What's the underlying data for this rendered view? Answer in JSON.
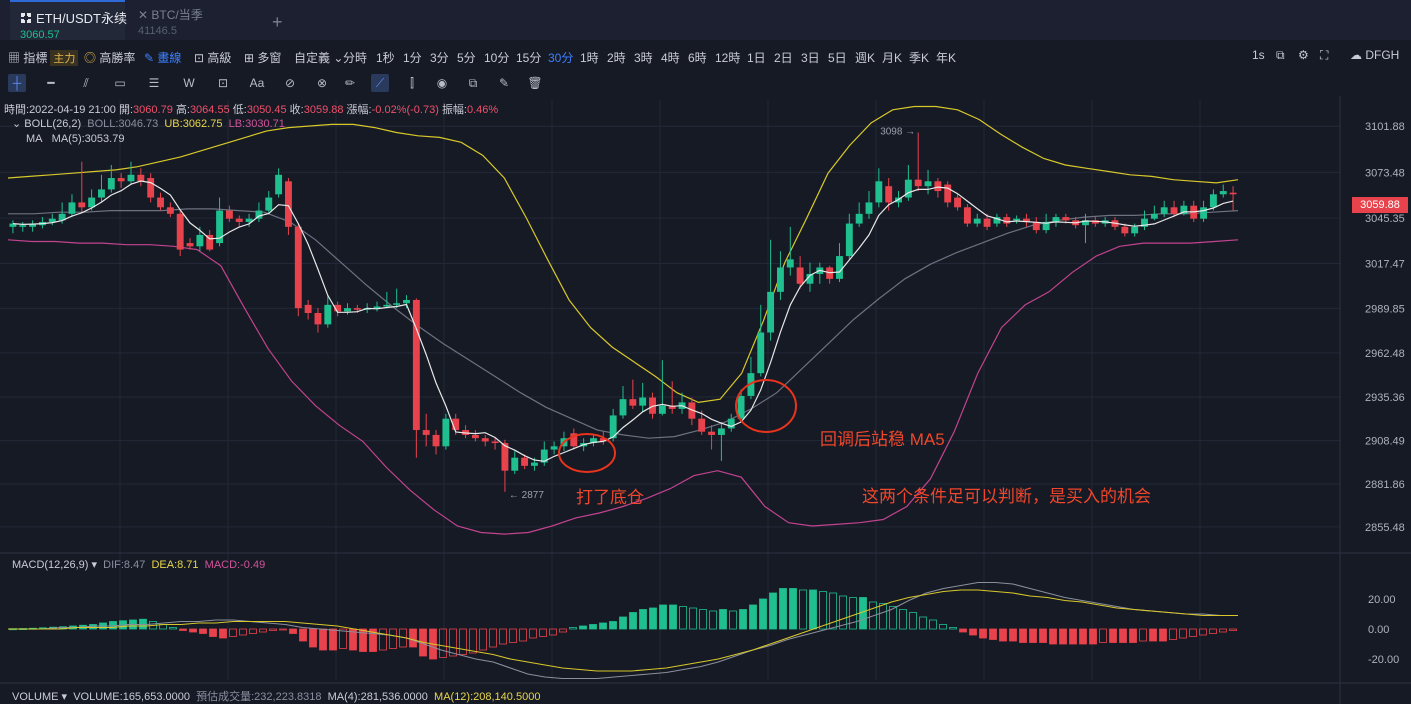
{
  "tabs": [
    {
      "symbol": "ETH/USDT永续",
      "price": "3060.57"
    },
    {
      "symbol": "BTC/当季",
      "price": "41146.5"
    }
  ],
  "toolbar": {
    "indicator": "指標",
    "main_badge": "主力",
    "high_win": "高勝率",
    "draw": "畫線",
    "advanced": "高級",
    "multi": "多窗",
    "custom": "自定義",
    "timeshare": "分時",
    "intervals": [
      "1秒",
      "1分",
      "3分",
      "5分",
      "10分",
      "15分",
      "30分",
      "1時",
      "2時",
      "3時",
      "4時",
      "6時",
      "12時",
      "1日",
      "2日",
      "3日",
      "5日",
      "週K",
      "月K",
      "季K",
      "年K"
    ],
    "active_interval": "30分",
    "right_interval": "1s",
    "exchange": "DFGH"
  },
  "info": {
    "time_label": "時間:",
    "time": "2022-04-19 21:00",
    "open_label": "開:",
    "open": "3060.79",
    "high_label": "高:",
    "high": "3064.55",
    "low_label": "低:",
    "low": "3050.45",
    "close_label": "收:",
    "close": "3059.88",
    "chg_label": "漲幅:",
    "chg": "-0.02%(-0.73)",
    "amp_label": "振幅:",
    "amp": "0.46%"
  },
  "boll": {
    "label": "BOLL(26,2)",
    "mid": "BOLL:3046.73",
    "ub": "UB:3062.75",
    "lb": "LB:3030.71"
  },
  "ma": {
    "label": "MA",
    "ma5": "MA(5):3053.79"
  },
  "macd": {
    "label": "MACD(12,26,9)",
    "dif": "DIF:8.47",
    "dea": "DEA:8.71",
    "macd": "MACD:-0.49"
  },
  "volume": {
    "label": "VOLUME",
    "volume": "VOLUME:165,653.0000",
    "est": "預估成交量:232,223.8318",
    "ma4": "MA(4):281,536.0000",
    "ma12": "MA(12):208,140.5000"
  },
  "current_price_tag": "3059.88",
  "annotations": {
    "bottom": "打了底仓",
    "ma5": "回调后站稳 MA5",
    "conclusion": "这两个条件足可以判断，是买入的机会"
  },
  "colors": {
    "up": "#1fbf8f",
    "down": "#e8434c",
    "boll_upper": "#d8c82a",
    "boll_lower": "#c2438f",
    "boll_mid": "#6d7180",
    "ma5": "#e8e8e8",
    "annotation": "#f0462b"
  },
  "chart_data": {
    "type": "candlestick",
    "price_axis": {
      "ticks": [
        3101.88,
        3073.48,
        3045.35,
        3017.47,
        2989.85,
        2962.48,
        2935.36,
        2908.49,
        2881.86,
        2855.48
      ],
      "ylim": [
        2840,
        3118
      ]
    },
    "high_marker": "3098",
    "low_marker": "2877",
    "candles": [
      [
        3040,
        3042,
        3036,
        3044
      ],
      [
        3040,
        3041,
        3037,
        3043
      ],
      [
        3040,
        3042,
        3037,
        3044
      ],
      [
        3041,
        3043,
        3039,
        3046
      ],
      [
        3043,
        3045,
        3041,
        3048
      ],
      [
        3044,
        3048,
        3042,
        3055
      ],
      [
        3048,
        3055,
        3046,
        3060
      ],
      [
        3055,
        3052,
        3049,
        3080
      ],
      [
        3052,
        3058,
        3050,
        3063
      ],
      [
        3058,
        3063,
        3055,
        3072
      ],
      [
        3063,
        3070,
        3061,
        3078
      ],
      [
        3070,
        3068,
        3064,
        3073
      ],
      [
        3068,
        3072,
        3066,
        3080
      ],
      [
        3072,
        3068,
        3065,
        3076
      ],
      [
        3070,
        3058,
        3055,
        3073
      ],
      [
        3058,
        3052,
        3050,
        3061
      ],
      [
        3052,
        3048,
        3046,
        3055
      ],
      [
        3048,
        3026,
        3022,
        3050
      ],
      [
        3030,
        3028,
        3026,
        3033
      ],
      [
        3028,
        3035,
        3025,
        3040
      ],
      [
        3035,
        3026,
        3025,
        3038
      ],
      [
        3030,
        3050,
        3028,
        3058
      ],
      [
        3050,
        3045,
        3043,
        3053
      ],
      [
        3045,
        3043,
        3040,
        3047
      ],
      [
        3043,
        3045,
        3040,
        3048
      ],
      [
        3045,
        3050,
        3043,
        3055
      ],
      [
        3050,
        3058,
        3048,
        3062
      ],
      [
        3060,
        3072,
        3058,
        3076
      ],
      [
        3068,
        3040,
        3035,
        3070
      ],
      [
        3040,
        2990,
        2985,
        3042
      ],
      [
        2992,
        2987,
        2983,
        2995
      ],
      [
        2987,
        2980,
        2975,
        2990
      ],
      [
        2980,
        2992,
        2978,
        2998
      ],
      [
        2992,
        2988,
        2985,
        2994
      ],
      [
        2988,
        2990,
        2986,
        2993
      ],
      [
        2990,
        2989,
        2987,
        2992
      ],
      [
        2989,
        2990,
        2987,
        2993
      ],
      [
        2990,
        2991,
        2988,
        2994
      ],
      [
        2991,
        2992,
        2990,
        3000
      ],
      [
        2992,
        2993,
        2990,
        3002
      ],
      [
        2993,
        2995,
        2990,
        2998
      ],
      [
        2995,
        2915,
        2898,
        2996
      ],
      [
        2915,
        2912,
        2905,
        2925
      ],
      [
        2912,
        2905,
        2900,
        2915
      ],
      [
        2905,
        2922,
        2903,
        2925
      ],
      [
        2922,
        2915,
        2912,
        2925
      ],
      [
        2915,
        2912,
        2910,
        2918
      ],
      [
        2912,
        2910,
        2908,
        2915
      ],
      [
        2910,
        2908,
        2905,
        2912
      ],
      [
        2908,
        2907,
        2903,
        2910
      ],
      [
        2907,
        2890,
        2877,
        2909
      ],
      [
        2890,
        2898,
        2888,
        2902
      ],
      [
        2898,
        2893,
        2891,
        2900
      ],
      [
        2893,
        2895,
        2890,
        2898
      ],
      [
        2895,
        2903,
        2893,
        2908
      ],
      [
        2903,
        2905,
        2900,
        2908
      ],
      [
        2905,
        2910,
        2902,
        2914
      ],
      [
        2913,
        2905,
        2903,
        2916
      ],
      [
        2905,
        2907,
        2902,
        2910
      ],
      [
        2907,
        2910,
        2905,
        2912
      ],
      [
        2910,
        2908,
        2906,
        2914
      ],
      [
        2910,
        2924,
        2908,
        2928
      ],
      [
        2924,
        2934,
        2922,
        2942
      ],
      [
        2934,
        2930,
        2928,
        2946
      ],
      [
        2930,
        2935,
        2926,
        2944
      ],
      [
        2935,
        2925,
        2922,
        2938
      ],
      [
        2925,
        2930,
        2924,
        2958
      ],
      [
        2930,
        2928,
        2925,
        2945
      ],
      [
        2928,
        2932,
        2925,
        2938
      ],
      [
        2932,
        2922,
        2918,
        2935
      ],
      [
        2922,
        2914,
        2912,
        2927
      ],
      [
        2914,
        2912,
        2903,
        2918
      ],
      [
        2912,
        2916,
        2896,
        2920
      ],
      [
        2916,
        2922,
        2914,
        2925
      ],
      [
        2922,
        2936,
        2920,
        2940
      ],
      [
        2936,
        2950,
        2934,
        2960
      ],
      [
        2950,
        2975,
        2948,
        2992
      ],
      [
        2975,
        3000,
        2970,
        3032
      ],
      [
        3000,
        3015,
        2995,
        3025
      ],
      [
        3015,
        3020,
        3010,
        3040
      ],
      [
        3015,
        3005,
        3002,
        3022
      ],
      [
        3005,
        3011,
        3000,
        3018
      ],
      [
        3011,
        3015,
        3005,
        3018
      ],
      [
        3015,
        3008,
        3005,
        3016
      ],
      [
        3008,
        3022,
        3006,
        3030
      ],
      [
        3022,
        3042,
        3020,
        3048
      ],
      [
        3042,
        3048,
        3040,
        3055
      ],
      [
        3048,
        3055,
        3045,
        3062
      ],
      [
        3055,
        3068,
        3052,
        3076
      ],
      [
        3065,
        3055,
        3050,
        3070
      ],
      [
        3055,
        3058,
        3052,
        3062
      ],
      [
        3058,
        3069,
        3056,
        3078
      ],
      [
        3069,
        3065,
        3062,
        3098
      ],
      [
        3065,
        3068,
        3060,
        3075
      ],
      [
        3068,
        3062,
        3058,
        3070
      ],
      [
        3066,
        3055,
        3052,
        3068
      ],
      [
        3058,
        3052,
        3050,
        3060
      ],
      [
        3052,
        3042,
        3040,
        3054
      ],
      [
        3042,
        3045,
        3040,
        3048
      ],
      [
        3045,
        3040,
        3038,
        3048
      ],
      [
        3042,
        3046,
        3040,
        3048
      ],
      [
        3046,
        3042,
        3040,
        3048
      ],
      [
        3044,
        3045,
        3042,
        3047
      ],
      [
        3045,
        3043,
        3040,
        3048
      ],
      [
        3043,
        3038,
        3036,
        3046
      ],
      [
        3038,
        3043,
        3036,
        3048
      ],
      [
        3043,
        3046,
        3040,
        3048
      ],
      [
        3046,
        3044,
        3042,
        3048
      ],
      [
        3044,
        3041,
        3039,
        3046
      ],
      [
        3041,
        3044,
        3030,
        3048
      ],
      [
        3044,
        3042,
        3040,
        3046
      ],
      [
        3042,
        3044,
        3040,
        3046
      ],
      [
        3044,
        3040,
        3038,
        3046
      ],
      [
        3040,
        3036,
        3034,
        3042
      ],
      [
        3036,
        3040,
        3034,
        3042
      ],
      [
        3040,
        3045,
        3038,
        3050
      ],
      [
        3045,
        3048,
        3044,
        3053
      ],
      [
        3048,
        3052,
        3046,
        3056
      ],
      [
        3052,
        3048,
        3046,
        3056
      ],
      [
        3048,
        3053,
        3047,
        3056
      ],
      [
        3053,
        3045,
        3043,
        3056
      ],
      [
        3045,
        3052,
        3043,
        3056
      ],
      [
        3052,
        3060,
        3050,
        3063
      ],
      [
        3060,
        3062,
        3058,
        3066
      ],
      [
        3061,
        3060,
        3050,
        3065
      ]
    ],
    "boll_upper": [
      3070,
      3071,
      3072,
      3073,
      3074,
      3075,
      3077,
      3080,
      3083,
      3087,
      3091,
      3095,
      3099,
      3101,
      3102,
      3103,
      3103,
      3101,
      3098,
      3096,
      3095,
      3092,
      3084,
      3070,
      3046,
      3020,
      2995,
      2978,
      2966,
      2957,
      2948,
      2938,
      2932,
      2934,
      2950,
      2982,
      3018,
      3045,
      3073,
      3090,
      3104,
      3112,
      3114,
      3114,
      3112,
      3106,
      3097,
      3089,
      3082,
      3078,
      3076,
      3074,
      3072,
      3071,
      3069,
      3068,
      3067,
      3069
    ],
    "boll_lower": [
      3032,
      3031,
      3031,
      3030,
      3030,
      3029,
      3029,
      3028,
      3026,
      3016,
      2990,
      2965,
      2945,
      2930,
      2918,
      2908,
      2892,
      2878,
      2866,
      2856,
      2852,
      2851,
      2852,
      2856,
      2861,
      2864,
      2868,
      2873,
      2879,
      2887,
      2890,
      2886,
      2868,
      2858,
      2856,
      2857,
      2858,
      2860,
      2868,
      2885,
      2914,
      2950,
      2978,
      2992,
      3000,
      3012,
      3022,
      3028,
      3030,
      3030,
      3030,
      3031,
      3032
    ],
    "boll_mid": [
      3048,
      3048,
      3049,
      3049,
      3050,
      3050,
      3050,
      3051,
      3051,
      3050,
      3049,
      3043,
      3032,
      3018,
      3004,
      2991,
      2979,
      2968,
      2958,
      2948,
      2938,
      2929,
      2922,
      2915,
      2912,
      2910,
      2911,
      2915,
      2920,
      2928,
      2938,
      2953,
      2968,
      2983,
      2996,
      3008,
      3017,
      3024,
      3030,
      3036,
      3041,
      3044,
      3046,
      3047,
      3047,
      3048,
      3048,
      3049,
      3050
    ],
    "macd_axis": {
      "ticks": [
        20.0,
        0.0,
        -20.0
      ],
      "ylim": [
        -34,
        36
      ]
    },
    "macd_hist": [
      0.2,
      0.3,
      0.5,
      0.8,
      1.2,
      1.5,
      2,
      2.5,
      3,
      4,
      5,
      5.5,
      6,
      6.5,
      5,
      3,
      1,
      -1,
      -2,
      -3,
      -5,
      -6,
      -5,
      -4,
      -3,
      -2,
      -1,
      -0.5,
      -3,
      -8,
      -12,
      -14,
      -14,
      -13,
      -14,
      -15,
      -15,
      -14,
      -13,
      -12,
      -12,
      -18,
      -20,
      -19,
      -18,
      -17,
      -16,
      -14,
      -12,
      -10,
      -9,
      -8,
      -6,
      -5,
      -4,
      -2,
      1,
      2,
      3,
      4,
      5,
      8,
      11,
      13,
      14,
      16,
      16,
      15,
      14,
      13,
      12,
      13,
      12,
      13,
      16,
      20,
      24,
      27,
      27,
      26,
      26,
      25,
      24,
      22,
      21,
      21,
      18,
      17,
      15,
      13,
      11,
      8,
      6,
      3,
      1,
      -2,
      -4,
      -6,
      -7,
      -8,
      -8,
      -9,
      -9,
      -9,
      -10,
      -10,
      -10,
      -10,
      -10,
      -9,
      -9,
      -9,
      -9,
      -8,
      -8,
      -8,
      -7,
      -6,
      -5,
      -4,
      -3,
      -2,
      -1
    ],
    "macd_dif": [
      0,
      0,
      0,
      1,
      1,
      2,
      2,
      3,
      3,
      4,
      5,
      5,
      6,
      6,
      5,
      4,
      3,
      1,
      0,
      -1,
      -2,
      -3,
      -4,
      -6,
      -10,
      -14,
      -17,
      -20,
      -22,
      -26,
      -30,
      -32,
      -33,
      -33,
      -33,
      -32,
      -31,
      -30,
      -29,
      -27,
      -25,
      -22,
      -18,
      -14,
      -11,
      -7,
      -4,
      -1,
      2,
      5,
      9,
      13,
      19,
      24,
      27,
      29,
      31,
      31,
      30,
      27,
      24,
      21,
      19,
      17,
      15,
      13,
      12,
      11,
      10,
      10,
      9,
      9
    ],
    "macd_dea": [
      0,
      0,
      0,
      0,
      1,
      1,
      1,
      2,
      2,
      3,
      3,
      4,
      4,
      5,
      5,
      5,
      5,
      4,
      3,
      2,
      0,
      -2,
      -4,
      -6,
      -9,
      -11,
      -13,
      -15,
      -17,
      -20,
      -22,
      -24,
      -26,
      -27,
      -28,
      -28,
      -28,
      -27,
      -26,
      -24,
      -22,
      -20,
      -17,
      -14,
      -10,
      -6,
      -2,
      2,
      6,
      10,
      14,
      18,
      21,
      23,
      25,
      26,
      26,
      25,
      24,
      22,
      21,
      19,
      18,
      16,
      14,
      13,
      12,
      11,
      10,
      9,
      9,
      9
    ]
  }
}
